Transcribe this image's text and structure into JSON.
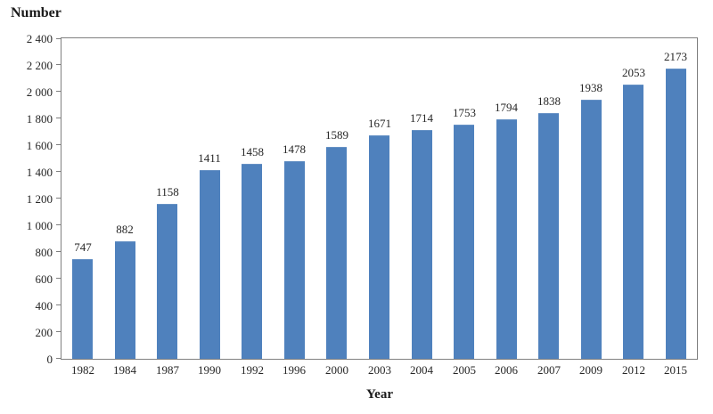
{
  "chart_data": {
    "type": "bar",
    "title": "",
    "ylabel": "Number",
    "xlabel": "Year",
    "categories": [
      "1982",
      "1984",
      "1987",
      "1990",
      "1992",
      "1996",
      "2000",
      "2003",
      "2004",
      "2005",
      "2006",
      "2007",
      "2009",
      "2012",
      "2015"
    ],
    "values": [
      747,
      882,
      1158,
      1411,
      1458,
      1478,
      1589,
      1671,
      1714,
      1753,
      1794,
      1838,
      1938,
      2053,
      2173
    ],
    "data_labels": [
      747,
      882,
      1158,
      1411,
      1458,
      1478,
      1589,
      1671,
      1714,
      1753,
      1794,
      1838,
      1938,
      2053,
      2173
    ],
    "ylim": [
      0,
      2400
    ],
    "y_tick_step": 200,
    "y_tick_values": [
      0,
      200,
      400,
      600,
      800,
      1000,
      1200,
      1400,
      1600,
      1800,
      2000,
      2200,
      2400
    ],
    "y_tick_labels": [
      "0",
      "200",
      "400",
      "600",
      "800",
      "1 000",
      "1 200",
      "1 400",
      "1 600",
      "1 800",
      "2 000",
      "2 200",
      "2 400"
    ],
    "grid": false,
    "legend_position": "none",
    "bar_color": "#4f81bd",
    "axis_frame_color": "#7f7f7f",
    "text_color": "#262626"
  }
}
